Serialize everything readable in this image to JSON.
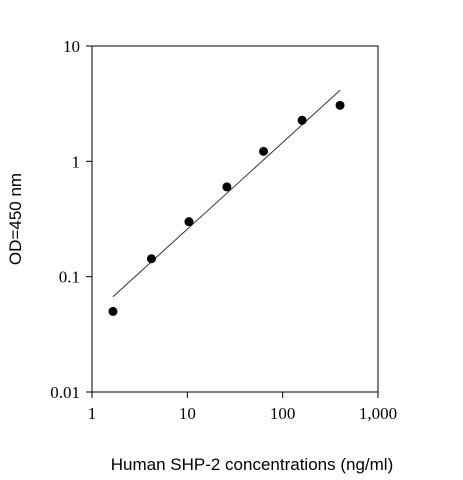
{
  "chart_data": {
    "type": "scatter",
    "x_label": "Human SHP-2 concentrations (ng/ml)",
    "y_label": "OD=450 nm",
    "x_log": true,
    "y_log": true,
    "xlim": [
      1,
      1000
    ],
    "ylim": [
      0.01,
      10
    ],
    "xticks": [
      1,
      10,
      100,
      {
        "value": 1000,
        "label": "1,000"
      }
    ],
    "yticks": [
      0.01,
      0.1,
      1,
      10
    ],
    "color": "#000000",
    "x": [
      1.66,
      4.2,
      10.4,
      26,
      63,
      160,
      400
    ],
    "values": [
      0.05,
      0.143,
      0.3,
      0.6,
      1.22,
      2.27,
      3.06
    ],
    "fit_line": {
      "color": "#333333",
      "x": [
        1.66,
        400
      ],
      "values": [
        0.067,
        4.13
      ]
    }
  }
}
